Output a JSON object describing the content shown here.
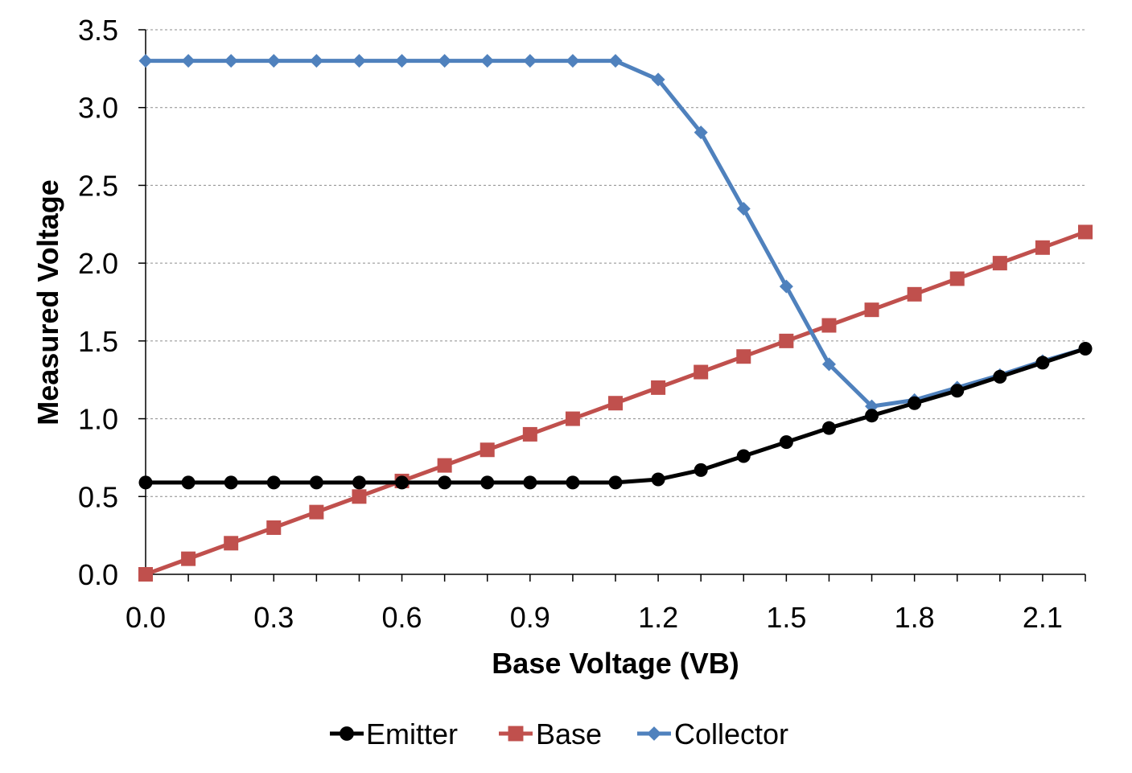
{
  "chart_data": {
    "type": "line",
    "title": "",
    "xlabel": "Base Voltage (VB)",
    "ylabel": "Measured Voltage",
    "xlim": [
      0,
      2.2
    ],
    "ylim": [
      0,
      3.5
    ],
    "x_ticks": [
      "0.0",
      "0.3",
      "0.6",
      "0.9",
      "1.2",
      "1.5",
      "1.8",
      "2.1"
    ],
    "x_tick_values": [
      0,
      0.3,
      0.6,
      0.9,
      1.2,
      1.5,
      1.8,
      2.1
    ],
    "x_minor_step": 0.1,
    "y_ticks": [
      "0.0",
      "0.5",
      "1.0",
      "1.5",
      "2.0",
      "2.5",
      "3.0",
      "3.5"
    ],
    "y_tick_values": [
      0,
      0.5,
      1.0,
      1.5,
      2.0,
      2.5,
      3.0,
      3.5
    ],
    "grid": "horizontal-dashed",
    "legend_position": "bottom",
    "x": [
      0.0,
      0.1,
      0.2,
      0.3,
      0.4,
      0.5,
      0.6,
      0.7,
      0.8,
      0.9,
      1.0,
      1.1,
      1.2,
      1.3,
      1.4,
      1.5,
      1.6,
      1.7,
      1.8,
      1.9,
      2.0,
      2.1,
      2.2
    ],
    "series": [
      {
        "name": "Emitter",
        "color": "#000000",
        "marker": "circle",
        "values": [
          0.59,
          0.59,
          0.59,
          0.59,
          0.59,
          0.59,
          0.59,
          0.59,
          0.59,
          0.59,
          0.59,
          0.59,
          0.61,
          0.67,
          0.76,
          0.85,
          0.94,
          1.02,
          1.1,
          1.18,
          1.27,
          1.36,
          1.45
        ]
      },
      {
        "name": "Base",
        "color": "#c0504d",
        "marker": "square",
        "values": [
          0.0,
          0.1,
          0.2,
          0.3,
          0.4,
          0.5,
          0.6,
          0.7,
          0.8,
          0.9,
          1.0,
          1.1,
          1.2,
          1.3,
          1.4,
          1.5,
          1.6,
          1.7,
          1.8,
          1.9,
          2.0,
          2.1,
          2.2
        ]
      },
      {
        "name": "Collector",
        "color": "#4f81bd",
        "marker": "diamond",
        "values": [
          3.3,
          3.3,
          3.3,
          3.3,
          3.3,
          3.3,
          3.3,
          3.3,
          3.3,
          3.3,
          3.3,
          3.3,
          3.18,
          2.84,
          2.35,
          1.85,
          1.35,
          1.08,
          1.12,
          1.2,
          1.28,
          1.37,
          1.45
        ]
      }
    ]
  }
}
